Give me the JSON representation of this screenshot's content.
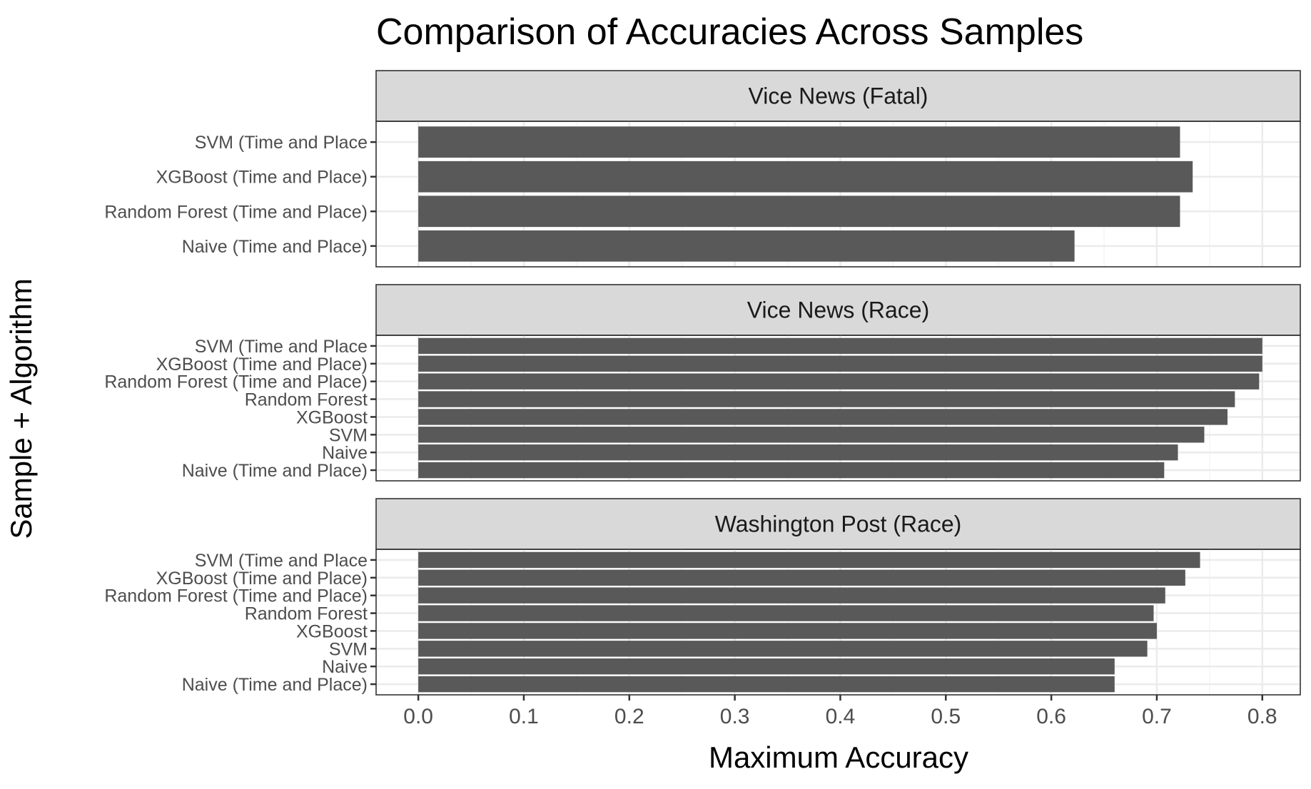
{
  "chart_data": {
    "type": "bar",
    "orientation": "horizontal",
    "title": "Comparison of Accuracies Across Samples",
    "xlabel": "Maximum Accuracy",
    "ylabel": "Sample + Algorithm",
    "xlim": [
      -0.04,
      0.836
    ],
    "xticks": [
      "0.0",
      "0.1",
      "0.2",
      "0.3",
      "0.4",
      "0.5",
      "0.6",
      "0.7",
      "0.8"
    ],
    "grid": true,
    "facets": [
      {
        "name": "Vice News (Fatal)",
        "categories": [
          "SVM (Time and Place",
          "XGBoost (Time and Place)",
          "Random Forest (Time and Place)",
          "Naive (Time and Place)"
        ],
        "values": [
          0.722,
          0.734,
          0.722,
          0.622
        ]
      },
      {
        "name": "Vice News (Race)",
        "categories": [
          "SVM (Time and Place",
          "XGBoost (Time and Place)",
          "Random Forest (Time and Place)",
          "Random Forest",
          "XGBoost",
          "SVM",
          "Naive",
          "Naive (Time and Place)"
        ],
        "values": [
          0.8,
          0.8,
          0.797,
          0.774,
          0.767,
          0.745,
          0.72,
          0.707
        ]
      },
      {
        "name": "Washington Post (Race)",
        "categories": [
          "SVM (Time and Place",
          "XGBoost (Time and Place)",
          "Random Forest (Time and Place)",
          "Random Forest",
          "XGBoost",
          "SVM",
          "Naive",
          "Naive (Time and Place)"
        ],
        "values": [
          0.741,
          0.727,
          0.708,
          0.697,
          0.7,
          0.691,
          0.66,
          0.66
        ]
      }
    ]
  }
}
